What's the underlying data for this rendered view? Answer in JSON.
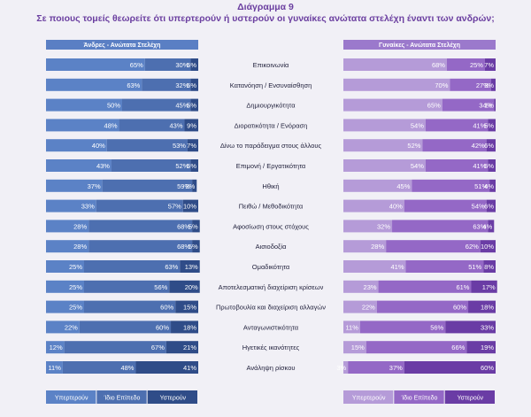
{
  "title": "Διάγραμμα 9",
  "subtitle": "Σε ποιους τομείς θεωρείτε ότι υπερτερούν ή υστερούν οι γυναίκες ανώτατα στελέχη έναντι των ανδρών;",
  "colors": {
    "men": [
      "#5b82c6",
      "#4d6fb0",
      "#2f4c88"
    ],
    "women": [
      "#b59bd8",
      "#9468c6",
      "#6a3ca5"
    ],
    "header_men": "#5a7fc4",
    "header_women": "#9b79cc",
    "title": "#6b3fa0",
    "background": "#f1f0f6"
  },
  "chart_data": [
    {
      "type": "bar",
      "stacked": true,
      "orientation": "horizontal",
      "title": "Άνδρες - Ανώτατα Στελέχη",
      "categories": [
        "Επικοινωνία",
        "Κατανόηση / Ενσυναίσθηση",
        "Δημιουργικότητα",
        "Διορατικότητα / Ενόραση",
        "Δίνω το παράδειγμα στους άλλους",
        "Επιμονή / Εργατικότητα",
        "Ηθική",
        "Πειθώ / Μεθοδικότητα",
        "Αφοσίωση στους στόχους",
        "Αισιοδοξία",
        "Ομαδικότητα",
        "Αποτελεσματική διαχείριση κρίσεων",
        "Πρωτοβουλία και διαχείριση αλλαγών",
        "Ανταγωνιστικότητα",
        "Ηγετικές ικανότητες",
        "Ανάληψη ρίσκου"
      ],
      "series": [
        {
          "name": "Υπερτερούν",
          "values": [
            65,
            63,
            50,
            48,
            40,
            43,
            37,
            33,
            28,
            28,
            25,
            25,
            25,
            22,
            12,
            11
          ]
        },
        {
          "name": "Ίδιο Επίπεδο",
          "values": [
            30,
            32,
            45,
            43,
            53,
            52,
            59,
            57,
            68,
            68,
            63,
            56,
            60,
            60,
            67,
            48
          ]
        },
        {
          "name": "Υστερούν",
          "values": [
            5,
            5,
            5,
            9,
            7,
            5,
            3,
            10,
            5,
            5,
            13,
            20,
            15,
            18,
            21,
            41
          ]
        }
      ],
      "labels": [
        [
          "65%",
          "63%",
          "50%",
          "48%",
          "40%",
          "43%",
          "37%",
          "33%",
          "28%",
          "28%",
          "25%",
          "25%",
          "25%",
          "22%",
          "12%",
          "11%"
        ],
        [
          "30%",
          "32%",
          "45%",
          "43%",
          "53%",
          "52%",
          "59%",
          "57%",
          "68%",
          "68%",
          "63%",
          "56%",
          "60%",
          "60%",
          "67%",
          "48%"
        ],
        [
          "5%",
          "5%",
          "5%",
          "9%",
          "7%",
          "5%",
          "3%",
          "10%",
          "5%",
          "5%",
          "13%",
          "20%",
          "15%",
          "18%",
          "21%",
          "41%"
        ]
      ],
      "xlim": [
        0,
        100
      ]
    },
    {
      "type": "bar",
      "stacked": true,
      "orientation": "horizontal",
      "title": "Γυναίκες - Ανώτατα Στελέχη",
      "categories": [
        "Επικοινωνία",
        "Κατανόηση / Ενσυναίσθηση",
        "Δημιουργικότητα",
        "Διορατικότητα / Ενόραση",
        "Δίνω το παράδειγμα στους άλλους",
        "Επιμονή / Εργατικότητα",
        "Ηθική",
        "Πειθώ / Μεθοδικότητα",
        "Αφοσίωση στους στόχους",
        "Αισιοδοξία",
        "Ομαδικότητα",
        "Αποτελεσματική διαχείριση κρίσεων",
        "Πρωτοβουλία και διαχείριση αλλαγών",
        "Ανταγωνιστικότητα",
        "Ηγετικές ικανότητες",
        "Ανάληψη ρίσκου"
      ],
      "series": [
        {
          "name": "Υπερτερούν",
          "values": [
            68,
            70,
            65,
            54,
            52,
            54,
            45,
            40,
            32,
            28,
            41,
            23,
            22,
            11,
            15,
            3
          ]
        },
        {
          "name": "Ίδιο Επίπεδο",
          "values": [
            25,
            27,
            34,
            41,
            42,
            41,
            51,
            54,
            63,
            62,
            51,
            61,
            60,
            56,
            66,
            37
          ]
        },
        {
          "name": "Υστερούν",
          "values": [
            7,
            3,
            1,
            5,
            6,
            5,
            4,
            6,
            4,
            10,
            8,
            17,
            18,
            33,
            19,
            60
          ]
        }
      ],
      "labels": [
        [
          "68%",
          "70%",
          "65%",
          "54%",
          "52%",
          "54%",
          "45%",
          "40%",
          "32%",
          "28%",
          "41%",
          "23%",
          "22%",
          "11%",
          "15%",
          "3%"
        ],
        [
          "25%",
          "27%",
          "34%",
          "41%",
          "42%",
          "41%",
          "51%",
          "54%",
          "63%",
          "62%",
          "51%",
          "61%",
          "60%",
          "56%",
          "66%",
          "37%"
        ],
        [
          "7%",
          "3%",
          "1%",
          "5%",
          "6%",
          "5%",
          "4%",
          "6%",
          "4%",
          "10%",
          "8%",
          "17%",
          "18%",
          "33%",
          "19%",
          "60%"
        ]
      ],
      "xlim": [
        0,
        100
      ]
    }
  ]
}
